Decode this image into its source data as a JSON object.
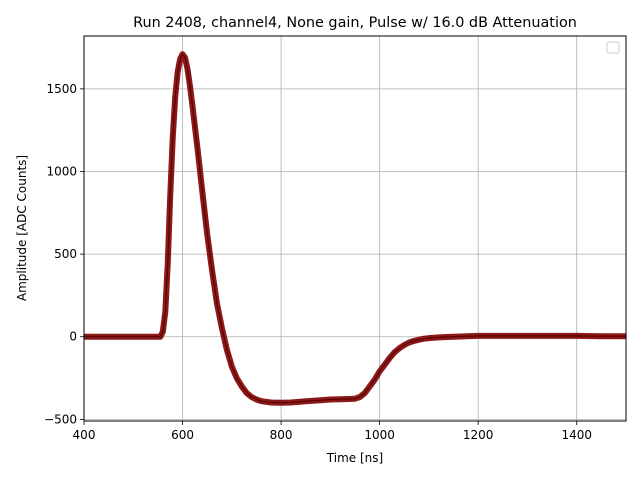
{
  "chart_data": {
    "type": "line",
    "title": "Run 2408, channel4, None gain, Pulse w/ 16.0 dB Attenuation",
    "xlabel": "Time [ns]",
    "ylabel": "Amplitude [ADC Counts]",
    "xlim": [
      400,
      1500
    ],
    "ylim": [
      -510,
      1820
    ],
    "xticks": [
      400,
      600,
      800,
      1000,
      1200,
      1400
    ],
    "yticks": [
      -500,
      0,
      500,
      1000,
      1500
    ],
    "grid": true,
    "legend": "top-right (empty box)",
    "colors": {
      "line": "#800000",
      "grid": "#b0b0b0"
    },
    "series": [
      {
        "name": "",
        "x": [
          400,
          450,
          500,
          540,
          555,
          560,
          565,
          570,
          575,
          580,
          585,
          590,
          595,
          600,
          605,
          610,
          615,
          620,
          630,
          640,
          650,
          660,
          670,
          680,
          690,
          700,
          710,
          720,
          730,
          740,
          750,
          760,
          780,
          800,
          820,
          850,
          880,
          900,
          920,
          950,
          960,
          970,
          980,
          990,
          1000,
          1010,
          1020,
          1030,
          1040,
          1050,
          1060,
          1070,
          1080,
          1090,
          1100,
          1120,
          1150,
          1200,
          1250,
          1300,
          1350,
          1400,
          1450,
          1500
        ],
        "y": [
          0,
          0,
          0,
          0,
          0,
          30,
          150,
          450,
          850,
          1200,
          1450,
          1600,
          1680,
          1710,
          1690,
          1620,
          1520,
          1400,
          1150,
          880,
          620,
          400,
          200,
          50,
          -80,
          -180,
          -250,
          -300,
          -340,
          -365,
          -380,
          -390,
          -398,
          -400,
          -398,
          -390,
          -385,
          -380,
          -378,
          -375,
          -365,
          -340,
          -300,
          -260,
          -210,
          -170,
          -130,
          -95,
          -70,
          -50,
          -35,
          -25,
          -18,
          -12,
          -8,
          -4,
          0,
          5,
          5,
          5,
          5,
          5,
          3,
          3
        ]
      }
    ]
  }
}
